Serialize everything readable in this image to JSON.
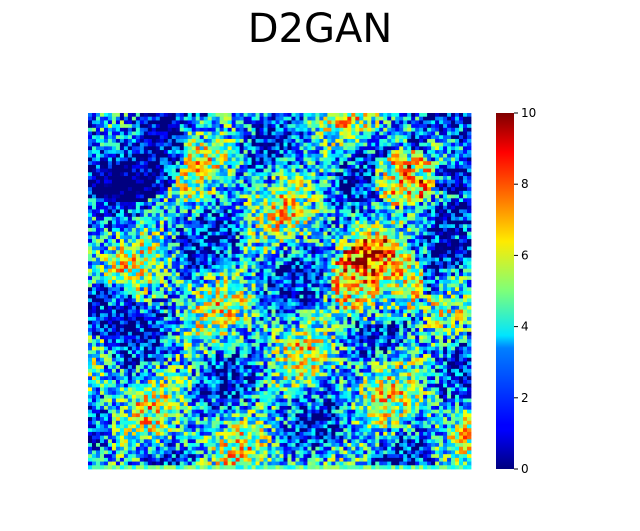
{
  "chart_data": {
    "type": "heatmap",
    "title": "D2GAN",
    "colormap": "jet",
    "value_range": [
      0,
      10
    ],
    "colorbar_ticks": [
      0,
      2,
      4,
      6,
      8,
      10
    ],
    "colorbar_tick_labels": [
      "0",
      "2",
      "4",
      "6",
      "8",
      "10"
    ],
    "axes_visible": false,
    "grid": false
  }
}
